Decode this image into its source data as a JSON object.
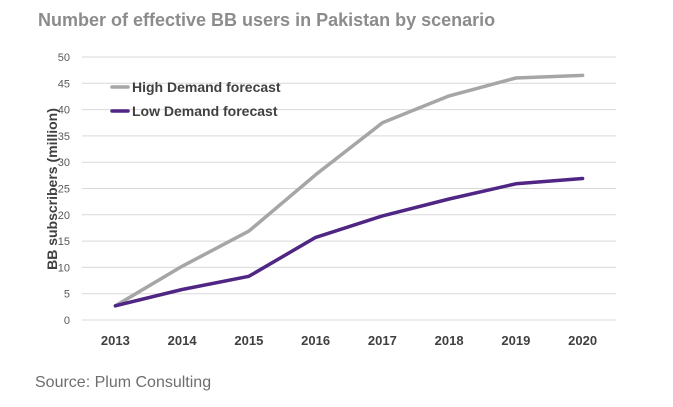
{
  "chart_data": {
    "type": "line",
    "title": "Number of effective BB users in Pakistan by scenario",
    "xlabel": "",
    "ylabel": "BB subscribers (million)",
    "categories": [
      "2013",
      "2014",
      "2015",
      "2016",
      "2017",
      "2018",
      "2019",
      "2020"
    ],
    "ylim": [
      0,
      50
    ],
    "yticks": [
      0,
      5,
      10,
      15,
      20,
      25,
      30,
      35,
      40,
      45,
      50
    ],
    "grid": true,
    "legend_position": "top-left",
    "series": [
      {
        "name": "High Demand forecast",
        "color": "#a6a6a6",
        "values": [
          2.7,
          10.2,
          16.9,
          27.6,
          37.5,
          42.6,
          46.0,
          46.5
        ]
      },
      {
        "name": "Low Demand forecast",
        "color": "#4f2683",
        "values": [
          2.7,
          5.8,
          8.3,
          15.7,
          19.8,
          23.0,
          25.9,
          26.9
        ]
      }
    ]
  },
  "source": "Source: Plum Consulting"
}
